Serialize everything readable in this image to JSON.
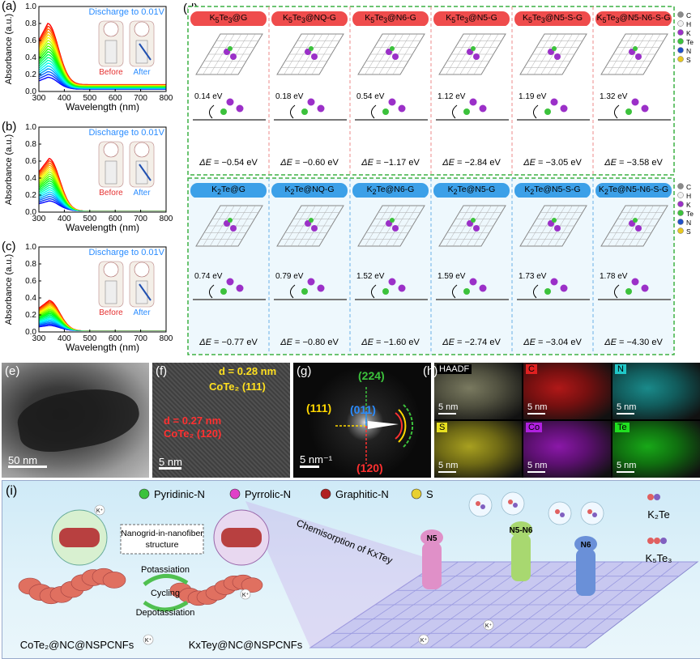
{
  "panel_labels": {
    "a": "(a)",
    "b": "(b)",
    "c": "(c)",
    "d": "(d)",
    "e": "(e)",
    "f": "(f)",
    "g": "(g)",
    "h": "(h)",
    "i": "(i)"
  },
  "uv": {
    "ylabel": "Absorbance (a.u.)",
    "xlabel": "Wavelength (nm)",
    "discharge": "Discharge to 0.01V",
    "before": "Before",
    "after": "After",
    "xticks": [
      "300",
      "400",
      "500",
      "600",
      "700",
      "800"
    ],
    "yticks": [
      "0.0",
      "0.2",
      "0.4",
      "0.6",
      "0.8",
      "1.0"
    ]
  },
  "chart_data": [
    {
      "type": "line",
      "panel": "(a)",
      "xlabel": "Wavelength (nm)",
      "ylabel": "Absorbance (a.u.)",
      "xlim": [
        300,
        800
      ],
      "ylim": [
        0,
        1.0
      ],
      "peak_wavelength": 335,
      "peak_max": 0.8,
      "tail_at_800": 0.08,
      "curve_count": 24
    },
    {
      "type": "line",
      "panel": "(b)",
      "xlabel": "Wavelength (nm)",
      "ylabel": "Absorbance (a.u.)",
      "xlim": [
        300,
        800
      ],
      "ylim": [
        0,
        1.0
      ],
      "peak_wavelength": 340,
      "peak_max": 0.63,
      "tail_at_800": 0.01,
      "curve_count": 24
    },
    {
      "type": "line",
      "panel": "(c)",
      "xlabel": "Wavelength (nm)",
      "ylabel": "Absorbance (a.u.)",
      "xlim": [
        300,
        800
      ],
      "ylim": [
        0,
        1.0
      ],
      "peak_wavelength": 340,
      "peak_max": 0.37,
      "tail_at_800": 0.01,
      "curve_count": 24
    }
  ],
  "dft": {
    "row1": [
      {
        "label": "K5Te3@G",
        "name_html": "K<sub>5</sub>Te<sub>3</sub>@G",
        "barrier": "0.14 eV",
        "delta": "−0.54 eV"
      },
      {
        "label": "K5Te3@NQ-G",
        "name_html": "K<sub>5</sub>Te<sub>3</sub>@NQ-G",
        "barrier": "0.18 eV",
        "delta": "−0.60 eV"
      },
      {
        "label": "K5Te3@N6-G",
        "name_html": "K<sub>5</sub>Te<sub>3</sub>@N6-G",
        "barrier": "0.54 eV",
        "delta": "−1.17 eV"
      },
      {
        "label": "K5Te3@N5-G",
        "name_html": "K<sub>5</sub>Te<sub>3</sub>@N5-G",
        "barrier": "1.12 eV",
        "delta": "−2.84 eV"
      },
      {
        "label": "K5Te3@N5-S-G",
        "name_html": "K<sub>5</sub>Te<sub>3</sub>@N5-S-G",
        "barrier": "1.19 eV",
        "delta": "−3.05 eV"
      },
      {
        "label": "K5Te3@N5-N6-S-G",
        "name_html": "K<sub>5</sub>Te<sub>3</sub>@N5-N6-S-G",
        "barrier": "1.32 eV",
        "delta": "−3.58 eV"
      }
    ],
    "row2": [
      {
        "label": "K2Te@G",
        "name_html": "K<sub>2</sub>Te@G",
        "barrier": "0.74 eV",
        "delta": "−0.77 eV"
      },
      {
        "label": "K2Te@NQ-G",
        "name_html": "K<sub>2</sub>Te@NQ-G",
        "barrier": "0.79 eV",
        "delta": "−0.80 eV"
      },
      {
        "label": "K2Te@N6-G",
        "name_html": "K<sub>2</sub>Te@N6-G",
        "barrier": "1.52 eV",
        "delta": "−1.60 eV"
      },
      {
        "label": "K2Te@N5-G",
        "name_html": "K<sub>2</sub>Te@N5-G",
        "barrier": "1.59 eV",
        "delta": "−2.74 eV"
      },
      {
        "label": "K2Te@N5-S-G",
        "name_html": "K<sub>2</sub>Te@N5-S-G",
        "barrier": "1.73 eV",
        "delta": "−3.04 eV"
      },
      {
        "label": "K2Te@N5-N6-S-G",
        "name_html": "K<sub>2</sub>Te@N5-N6-S-G",
        "barrier": "1.78 eV",
        "delta": "−4.30 eV"
      }
    ],
    "legend": [
      {
        "el": "C",
        "color": "#8a8a8a"
      },
      {
        "el": "H",
        "color": "#f2f2f2"
      },
      {
        "el": "K",
        "color": "#9b30c8"
      },
      {
        "el": "Te",
        "color": "#3cc23c"
      },
      {
        "el": "N",
        "color": "#2050c8"
      },
      {
        "el": "S",
        "color": "#e8c820"
      }
    ],
    "delta_prefix": "ΔE"
  },
  "tem": {
    "e_scale": "50 nm",
    "f_d1": "d = 0.28 nm",
    "f_cote2_111": "CoTe₂ (111)",
    "f_d2": "d = 0.27 nm",
    "f_cote2_120": "CoTe₂ (120)",
    "f_scale": "5 nm",
    "g_224": "(224)",
    "g_111": "(111)",
    "g_011": "(011)",
    "g_120": "(120)",
    "g_scale": "5 nm⁻¹",
    "h_maps": [
      {
        "tag": "HAADF",
        "scale": "5 nm"
      },
      {
        "tag": "C",
        "scale": "5 nm"
      },
      {
        "tag": "N",
        "scale": "5 nm"
      },
      {
        "tag": "S",
        "scale": "5 nm"
      },
      {
        "tag": "Co",
        "scale": "5 nm"
      },
      {
        "tag": "Te",
        "scale": "5 nm"
      }
    ]
  },
  "scheme": {
    "legend": [
      {
        "text": "Pyridinic-N",
        "color": "#3cc23c"
      },
      {
        "text": "Pyrrolic-N",
        "color": "#e040c8"
      },
      {
        "text": "Graphitic-N",
        "color": "#b02020"
      },
      {
        "text": "S",
        "color": "#e8d030"
      }
    ],
    "nanogrid": "Nanogrid-in-nanofiber structure",
    "potassiation": "Potassiation",
    "cycling": "Cycling",
    "depotassiation": "Depotassiation",
    "left_material": "CoTe₂@NC@NSPCNFs",
    "right_material": "KxTey@NC@NSPCNFs",
    "chemisorption": "Chemisorption of KxTey",
    "k2te": "K₂Te",
    "k5te3": "K₅Te₃",
    "n5": "N5",
    "n6": "N6",
    "n5n6": "N5-N6",
    "kplus": "K⁺"
  }
}
